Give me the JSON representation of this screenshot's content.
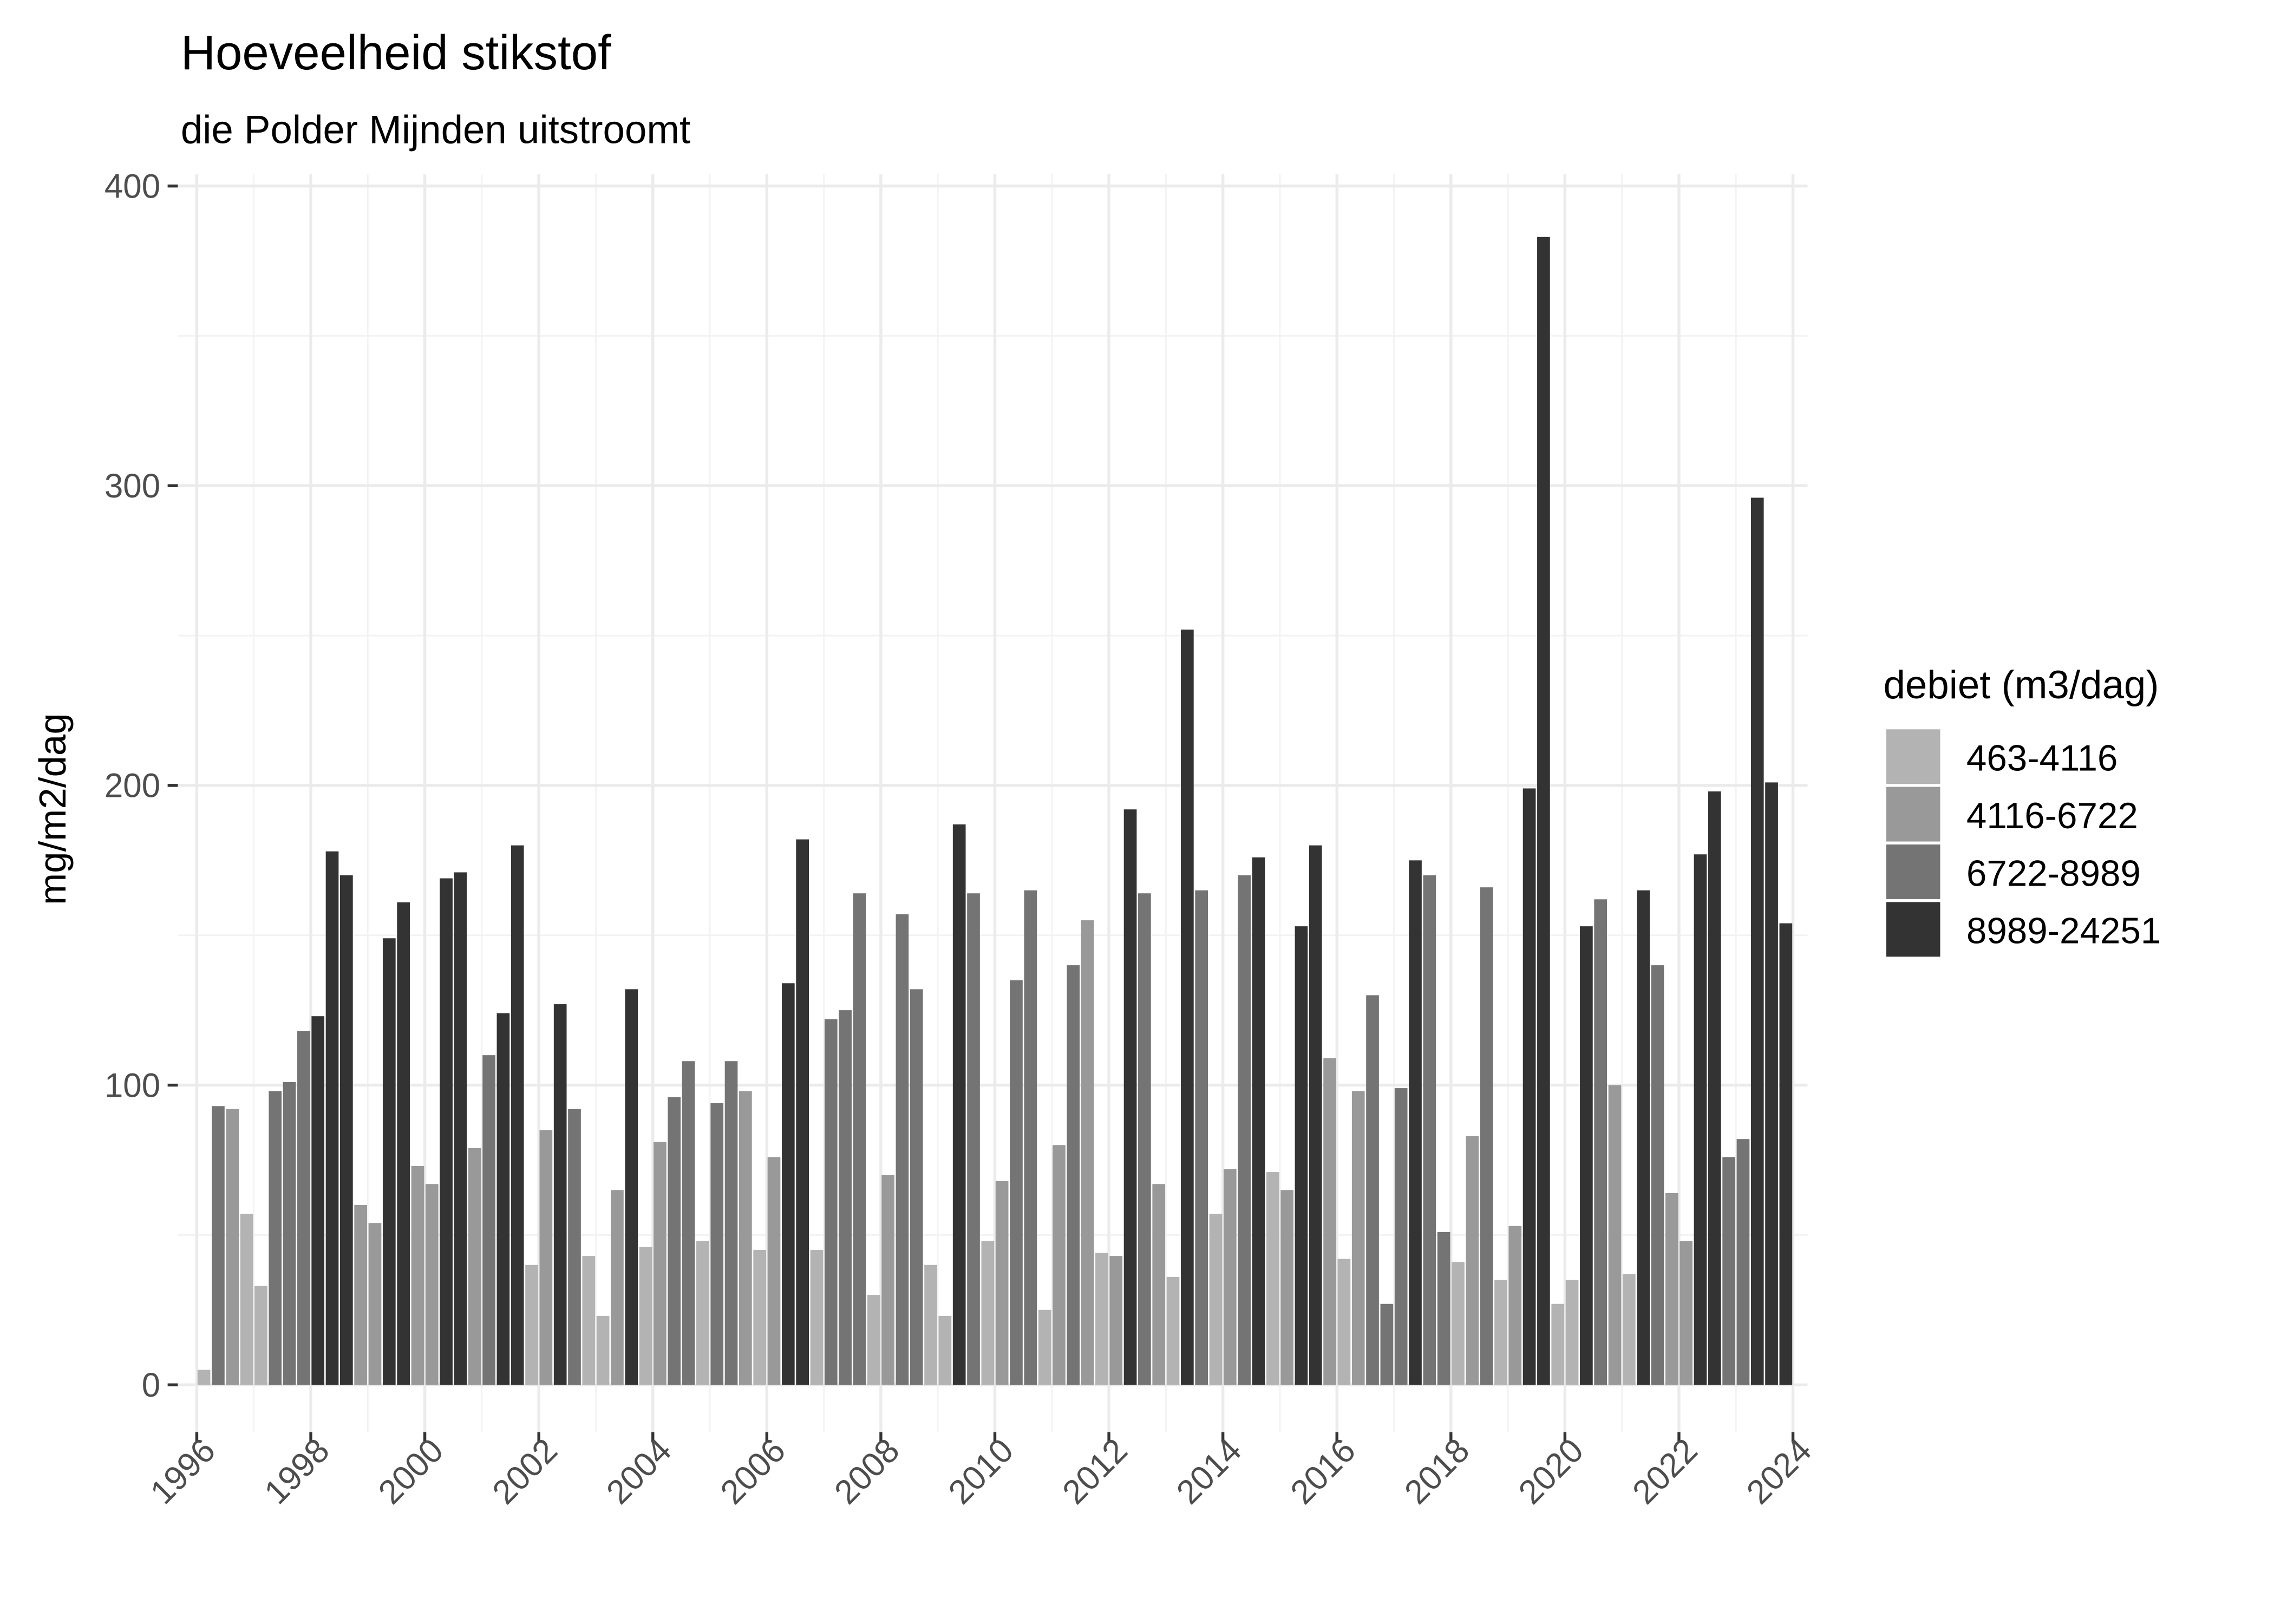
{
  "chart_data": {
    "type": "bar",
    "title": "Hoeveelheid stikstof",
    "subtitle": "die Polder Mijnden uitstroomt",
    "xlabel": "",
    "ylabel": "mg/m2/dag",
    "ylim": [
      0,
      400
    ],
    "yticks": [
      0,
      100,
      200,
      300,
      400
    ],
    "xlim": [
      1996,
      2024
    ],
    "xticks": [
      "1996",
      "1998",
      "2000",
      "2002",
      "2004",
      "2006",
      "2008",
      "2010",
      "2012",
      "2014",
      "2016",
      "2018",
      "2020",
      "2022",
      "2024"
    ],
    "grid": true,
    "legend": {
      "title": "debiet (m3/dag)",
      "placement": "right",
      "entries": [
        {
          "label": "463-4116",
          "color": "#B3B3B3"
        },
        {
          "label": "4116-6722",
          "color": "#999999"
        },
        {
          "label": "6722-8989",
          "color": "#747474"
        },
        {
          "label": "8989-24251",
          "color": "#333333"
        }
      ]
    },
    "series_by_period": [
      [
        "1996-Q1",
        5,
        0
      ],
      [
        "1996-Q2",
        93,
        2
      ],
      [
        "1996-Q3",
        92,
        1
      ],
      [
        "1996-Q4",
        57,
        0
      ],
      [
        "1997-Q1",
        33,
        0
      ],
      [
        "1997-Q2",
        98,
        2
      ],
      [
        "1997-Q3",
        101,
        2
      ],
      [
        "1997-Q4",
        118,
        2
      ],
      [
        "1998-Q1",
        123,
        3
      ],
      [
        "1998-Q2",
        178,
        3
      ],
      [
        "1998-Q3",
        170,
        3
      ],
      [
        "1998-Q4",
        60,
        1
      ],
      [
        "1999-Q1",
        54,
        1
      ],
      [
        "1999-Q2",
        149,
        3
      ],
      [
        "1999-Q3",
        161,
        3
      ],
      [
        "1999-Q4",
        73,
        1
      ],
      [
        "2000-Q1",
        67,
        1
      ],
      [
        "2000-Q2",
        169,
        3
      ],
      [
        "2000-Q3",
        171,
        3
      ],
      [
        "2000-Q4",
        79,
        1
      ],
      [
        "2001-Q1",
        110,
        2
      ],
      [
        "2001-Q2",
        124,
        3
      ],
      [
        "2001-Q3",
        180,
        3
      ],
      [
        "2001-Q4",
        40,
        0
      ],
      [
        "2002-Q1",
        85,
        1
      ],
      [
        "2002-Q2",
        127,
        3
      ],
      [
        "2002-Q3",
        92,
        2
      ],
      [
        "2002-Q4",
        43,
        0
      ],
      [
        "2003-Q1",
        23,
        0
      ],
      [
        "2003-Q2",
        65,
        1
      ],
      [
        "2003-Q3",
        132,
        3
      ],
      [
        "2003-Q4",
        46,
        0
      ],
      [
        "2004-Q1",
        81,
        1
      ],
      [
        "2004-Q2",
        96,
        2
      ],
      [
        "2004-Q3",
        108,
        2
      ],
      [
        "2004-Q4",
        48,
        0
      ],
      [
        "2005-Q1",
        94,
        2
      ],
      [
        "2005-Q2",
        108,
        2
      ],
      [
        "2005-Q3",
        98,
        1
      ],
      [
        "2005-Q4",
        45,
        0
      ],
      [
        "2006-Q1",
        76,
        1
      ],
      [
        "2006-Q2",
        134,
        3
      ],
      [
        "2006-Q3",
        182,
        3
      ],
      [
        "2006-Q4",
        45,
        0
      ],
      [
        "2007-Q1",
        122,
        2
      ],
      [
        "2007-Q2",
        125,
        2
      ],
      [
        "2007-Q3",
        164,
        2
      ],
      [
        "2007-Q4",
        30,
        0
      ],
      [
        "2008-Q1",
        70,
        1
      ],
      [
        "2008-Q2",
        157,
        2
      ],
      [
        "2008-Q3",
        132,
        2
      ],
      [
        "2008-Q4",
        40,
        0
      ],
      [
        "2009-Q1",
        23,
        0
      ],
      [
        "2009-Q2",
        187,
        3
      ],
      [
        "2009-Q3",
        164,
        2
      ],
      [
        "2009-Q4",
        48,
        0
      ],
      [
        "2010-Q1",
        68,
        1
      ],
      [
        "2010-Q2",
        135,
        2
      ],
      [
        "2010-Q3",
        165,
        2
      ],
      [
        "2010-Q4",
        25,
        0
      ],
      [
        "2011-Q1",
        80,
        1
      ],
      [
        "2011-Q2",
        140,
        2
      ],
      [
        "2011-Q3",
        155,
        1
      ],
      [
        "2011-Q4",
        44,
        0
      ],
      [
        "2012-Q1",
        43,
        1
      ],
      [
        "2012-Q2",
        192,
        3
      ],
      [
        "2012-Q3",
        164,
        2
      ],
      [
        "2012-Q4",
        67,
        1
      ],
      [
        "2013-Q1",
        36,
        0
      ],
      [
        "2013-Q2",
        252,
        3
      ],
      [
        "2013-Q3",
        165,
        2
      ],
      [
        "2013-Q4",
        57,
        0
      ],
      [
        "2014-Q1",
        72,
        1
      ],
      [
        "2014-Q2",
        170,
        2
      ],
      [
        "2014-Q3",
        176,
        3
      ],
      [
        "2014-Q4",
        71,
        0
      ],
      [
        "2015-Q1",
        65,
        1
      ],
      [
        "2015-Q2",
        153,
        3
      ],
      [
        "2015-Q3",
        180,
        3
      ],
      [
        "2015-Q4",
        109,
        1
      ],
      [
        "2016-Q1",
        42,
        0
      ],
      [
        "2016-Q2",
        98,
        1
      ],
      [
        "2016-Q3",
        130,
        2
      ],
      [
        "2016-Q4",
        27,
        2
      ],
      [
        "2017-Q1",
        99,
        2
      ],
      [
        "2017-Q2",
        175,
        3
      ],
      [
        "2017-Q3",
        170,
        2
      ],
      [
        "2017-Q4",
        51,
        2
      ],
      [
        "2018-Q1",
        41,
        0
      ],
      [
        "2018-Q2",
        83,
        1
      ],
      [
        "2018-Q3",
        166,
        2
      ],
      [
        "2018-Q4",
        35,
        0
      ],
      [
        "2019-Q1",
        53,
        1
      ],
      [
        "2019-Q2",
        199,
        3
      ],
      [
        "2019-Q3",
        383,
        3
      ],
      [
        "2019-Q4",
        27,
        0
      ],
      [
        "2020-Q1",
        35,
        0
      ],
      [
        "2020-Q2",
        153,
        3
      ],
      [
        "2020-Q3",
        162,
        2
      ],
      [
        "2020-Q4",
        100,
        1
      ],
      [
        "2021-Q1",
        37,
        0
      ],
      [
        "2021-Q2",
        165,
        3
      ],
      [
        "2021-Q3",
        140,
        2
      ],
      [
        "2021-Q4",
        64,
        1
      ],
      [
        "2022-Q1",
        48,
        1
      ],
      [
        "2022-Q2",
        177,
        3
      ],
      [
        "2022-Q3",
        198,
        3
      ],
      [
        "2022-Q4",
        76,
        2
      ],
      [
        "2023-Q1",
        82,
        2
      ],
      [
        "2023-Q2",
        296,
        3
      ],
      [
        "2023-Q3",
        201,
        3
      ],
      [
        "2023-Q4",
        154,
        3
      ]
    ]
  }
}
